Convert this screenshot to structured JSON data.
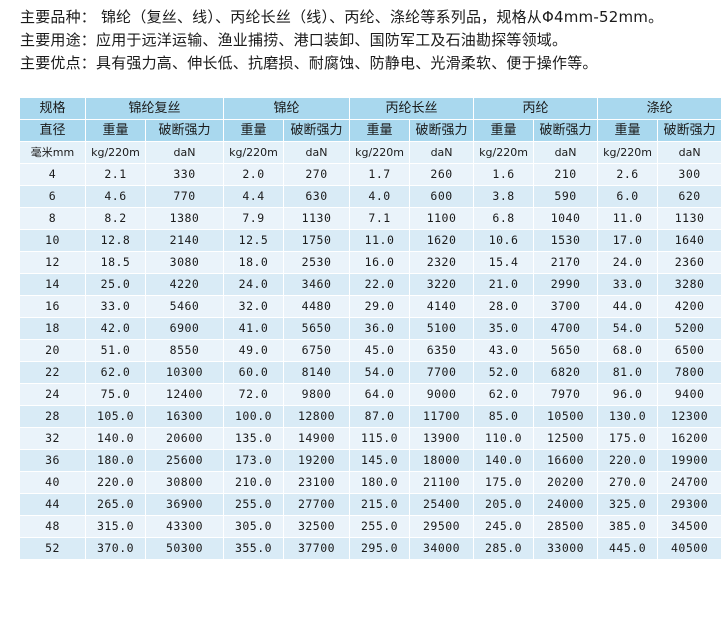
{
  "intro": {
    "line1": "主要品种：  锦纶（复丝、线）、丙纶长丝（线）、丙纶、涤纶等系列品，规格从Φ4mm-52mm。",
    "line2": "主要用途：应用于远洋运输、渔业捕捞、港口装卸、国防军工及石油勘探等领域。",
    "line3": "主要优点：具有强力高、伸长低、抗磨损、耐腐蚀、防静电、光滑柔软、便于操作等。"
  },
  "table": {
    "header_spec": "规格",
    "header_diameter": "直径",
    "unit_mm": "毫米mm",
    "materials": [
      "锦纶复丝",
      "锦纶",
      "丙纶长丝",
      "丙纶",
      "涤纶"
    ],
    "weight_label": "重量",
    "strength_label": "破断强力",
    "weight_unit": "kg/220m",
    "strength_unit": "daN",
    "rows": [
      [
        "4",
        "2.1",
        "330",
        "2.0",
        "270",
        "1.7",
        "260",
        "1.6",
        "210",
        "2.6",
        "300"
      ],
      [
        "6",
        "4.6",
        "770",
        "4.4",
        "630",
        "4.0",
        "600",
        "3.8",
        "590",
        "6.0",
        "620"
      ],
      [
        "8",
        "8.2",
        "1380",
        "7.9",
        "1130",
        "7.1",
        "1100",
        "6.8",
        "1040",
        "11.0",
        "1130"
      ],
      [
        "10",
        "12.8",
        "2140",
        "12.5",
        "1750",
        "11.0",
        "1620",
        "10.6",
        "1530",
        "17.0",
        "1640"
      ],
      [
        "12",
        "18.5",
        "3080",
        "18.0",
        "2530",
        "16.0",
        "2320",
        "15.4",
        "2170",
        "24.0",
        "2360"
      ],
      [
        "14",
        "25.0",
        "4220",
        "24.0",
        "3460",
        "22.0",
        "3220",
        "21.0",
        "2990",
        "33.0",
        "3280"
      ],
      [
        "16",
        "33.0",
        "5460",
        "32.0",
        "4480",
        "29.0",
        "4140",
        "28.0",
        "3700",
        "44.0",
        "4200"
      ],
      [
        "18",
        "42.0",
        "6900",
        "41.0",
        "5650",
        "36.0",
        "5100",
        "35.0",
        "4700",
        "54.0",
        "5200"
      ],
      [
        "20",
        "51.0",
        "8550",
        "49.0",
        "6750",
        "45.0",
        "6350",
        "43.0",
        "5650",
        "68.0",
        "6500"
      ],
      [
        "22",
        "62.0",
        "10300",
        "60.0",
        "8140",
        "54.0",
        "7700",
        "52.0",
        "6820",
        "81.0",
        "7800"
      ],
      [
        "24",
        "75.0",
        "12400",
        "72.0",
        "9800",
        "64.0",
        "9000",
        "62.0",
        "7970",
        "96.0",
        "9400"
      ],
      [
        "28",
        "105.0",
        "16300",
        "100.0",
        "12800",
        "87.0",
        "11700",
        "85.0",
        "10500",
        "130.0",
        "12300"
      ],
      [
        "32",
        "140.0",
        "20600",
        "135.0",
        "14900",
        "115.0",
        "13900",
        "110.0",
        "12500",
        "175.0",
        "16200"
      ],
      [
        "36",
        "180.0",
        "25600",
        "173.0",
        "19200",
        "145.0",
        "18000",
        "140.0",
        "16600",
        "220.0",
        "19900"
      ],
      [
        "40",
        "220.0",
        "30800",
        "210.0",
        "23100",
        "180.0",
        "21100",
        "175.0",
        "20200",
        "270.0",
        "24700"
      ],
      [
        "44",
        "265.0",
        "36900",
        "255.0",
        "27700",
        "215.0",
        "25400",
        "205.0",
        "24000",
        "325.0",
        "29300"
      ],
      [
        "48",
        "315.0",
        "43300",
        "305.0",
        "32500",
        "255.0",
        "29500",
        "245.0",
        "28500",
        "385.0",
        "34500"
      ],
      [
        "52",
        "370.0",
        "50300",
        "355.0",
        "37700",
        "295.0",
        "34000",
        "285.0",
        "33000",
        "445.0",
        "40500"
      ]
    ]
  },
  "colors": {
    "header_bg": "#a9d8ee",
    "row_light": "#eaf3fa",
    "row_dark": "#d9ebf6"
  }
}
